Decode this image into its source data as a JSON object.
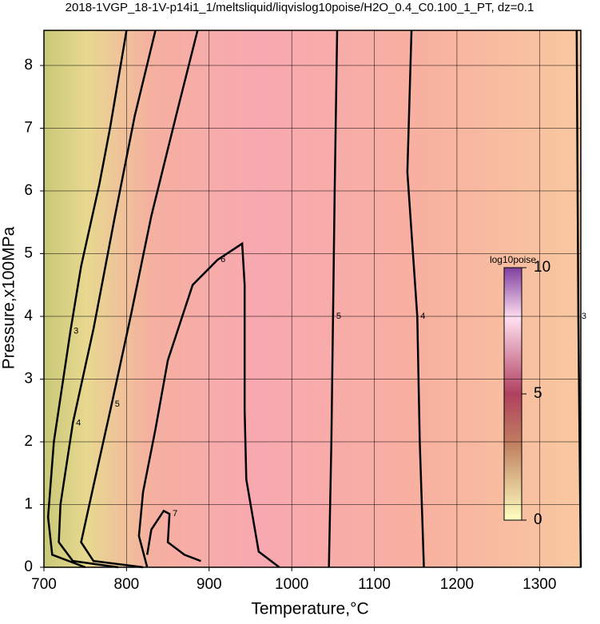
{
  "chart_data": {
    "type": "contour",
    "title": "2018-1VGP_18-1V-p14i1_1/meltsliquid/liqvislog10poise/H2O_0.4_C0.100_1_PT, dz=0.1",
    "x_label": "Temperature,°C",
    "y_label": "Pressure,x100MPa",
    "xlim": [
      700,
      1350
    ],
    "ylim": [
      0,
      8.56
    ],
    "xticks": [
      700,
      800,
      900,
      1000,
      1100,
      1200,
      1300
    ],
    "yticks": [
      0,
      1,
      2,
      3,
      4,
      5,
      6,
      7,
      8
    ],
    "grid": true,
    "colorbar": {
      "label": "log10poise",
      "lim": [
        0,
        10
      ],
      "ticks": [
        0,
        5,
        10
      ]
    },
    "series": [
      {
        "name": "3",
        "color": "#000000",
        "x": [
          800,
          780,
          767,
          745,
          732,
          712,
          705,
          710,
          750
        ],
        "y": [
          8.56,
          7.0,
          6.1,
          4.8,
          3.76,
          2.0,
          0.8,
          0.2,
          0.0
        ]
      },
      {
        "name": "4",
        "color": "#000000",
        "x": [
          835,
          810,
          786,
          760,
          735,
          720,
          718,
          735,
          790
        ],
        "y": [
          8.56,
          7.2,
          5.6,
          3.8,
          2.3,
          1.0,
          0.4,
          0.1,
          0.0
        ]
      },
      {
        "name": "5",
        "color": "#000000",
        "x": [
          886,
          860,
          830,
          805,
          782,
          760,
          745,
          760,
          820
        ],
        "y": [
          8.56,
          7.2,
          5.6,
          4.0,
          2.6,
          1.3,
          0.4,
          0.1,
          0.0
        ]
      },
      {
        "name": "6",
        "color": "#000000",
        "x": [
          825,
          815,
          820,
          835,
          850,
          870,
          880,
          910,
          940,
          943,
          943,
          945,
          960,
          985
        ],
        "y": [
          0.0,
          0.5,
          1.2,
          2.2,
          3.3,
          4.1,
          4.5,
          4.9,
          5.16,
          4.5,
          2.5,
          1.4,
          0.25,
          0.0
        ]
      },
      {
        "name": "7",
        "color": "#000000",
        "x": [
          825,
          830,
          845,
          852,
          850,
          870,
          890
        ],
        "y": [
          0.2,
          0.6,
          0.9,
          0.85,
          0.4,
          0.2,
          0.1
        ]
      },
      {
        "name": "5",
        "color": "#000000",
        "x": [
          1045,
          1048,
          1050,
          1052,
          1055
        ],
        "y": [
          0.0,
          2.0,
          4.0,
          6.0,
          8.56
        ]
      },
      {
        "name": "4",
        "color": "#000000",
        "x": [
          1160,
          1155,
          1152,
          1140,
          1145
        ],
        "y": [
          0.0,
          2.0,
          4.0,
          6.3,
          8.56
        ]
      },
      {
        "name": "3",
        "color": "#000000",
        "x": [
          1350,
          1347,
          1345
        ],
        "y": [
          0.0,
          4.0,
          8.56
        ]
      }
    ]
  }
}
